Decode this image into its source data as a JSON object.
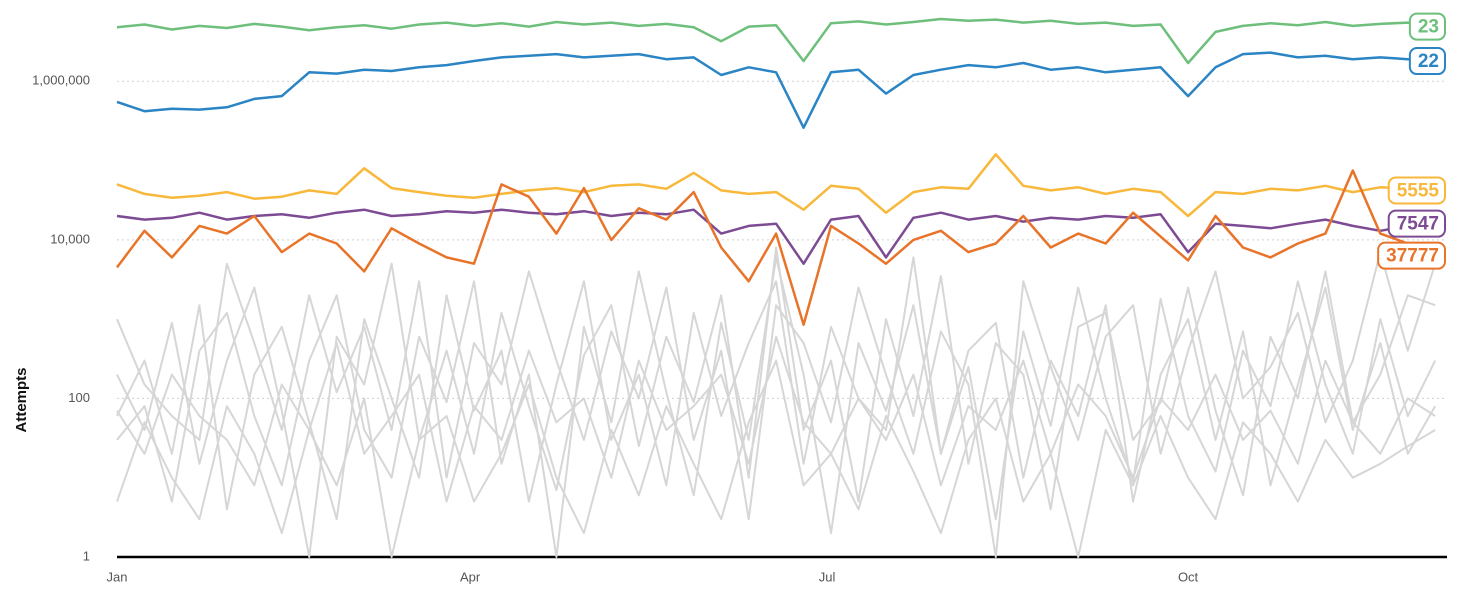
{
  "chart_data": {
    "type": "line",
    "ylabel": "Attempts",
    "yscale": "log",
    "grid": true,
    "x": [
      0,
      7,
      14,
      21,
      28,
      35,
      42,
      49,
      56,
      63,
      70,
      77,
      84,
      91,
      98,
      105,
      112,
      119,
      126,
      133,
      140,
      147,
      154,
      161,
      168,
      175,
      182,
      189,
      196,
      203,
      210,
      217,
      224,
      231,
      238,
      245,
      252,
      259,
      266,
      273,
      280,
      287,
      294,
      301,
      308,
      315,
      322,
      329,
      336
    ],
    "xlim": [
      0,
      339
    ],
    "xticks": [
      {
        "value": 0,
        "label": "Jan"
      },
      {
        "value": 90,
        "label": "Apr"
      },
      {
        "value": 181,
        "label": "Jul"
      },
      {
        "value": 273,
        "label": "Oct"
      }
    ],
    "ylim": [
      1,
      10000000
    ],
    "yticks": [
      1,
      100,
      {
        "value": 10000,
        "label": "10,000"
      },
      {
        "value": 1000000,
        "label": "1,000,000"
      }
    ],
    "series": [
      {
        "color": "#d6d6d6",
        "values": [
          30,
          80,
          5,
          400,
          1200,
          60,
          8,
          300,
          2000,
          40,
          10,
          600,
          90,
          3000,
          15,
          200,
          1,
          800,
          50,
          4000,
          120,
          6,
          900,
          30,
          6000,
          200,
          2,
          500,
          70,
          1500,
          20,
          250,
          3,
          700,
          45,
          2500,
          100,
          9,
          1800,
          60,
          12,
          400,
          80,
          3000,
          150,
          20,
          1000,
          60,
          300
        ]
      },
      {
        "color": "#d6d6d6",
        "values": [
          200,
          40,
          900,
          15,
          300,
          2500,
          70,
          1,
          600,
          150,
          5000,
          30,
          400,
          20,
          1200,
          80,
          7,
          350,
          1500,
          25,
          600,
          90,
          2000,
          10,
          8000,
          40,
          300,
          5,
          1000,
          60,
          3500,
          15,
          500,
          200,
          4,
          800,
          1200,
          30,
          90,
          2500,
          70,
          6,
          600,
          100,
          4000,
          50,
          200,
          2000,
          1500
        ]
      },
      {
        "color": "#d6d6d6",
        "values": [
          60,
          300,
          20,
          1500,
          4,
          200,
          800,
          50,
          3,
          1000,
          100,
          10,
          2000,
          70,
          400,
          5,
          150,
          3000,
          30,
          200,
          8,
          1200,
          60,
          500,
          3000,
          15,
          800,
          100,
          40,
          6000,
          20,
          400,
          900,
          10,
          300,
          60,
          1500,
          5,
          200,
          1000,
          30,
          700,
          8,
          150,
          2500,
          40,
          500,
          20,
          80
        ]
      },
      {
        "color": "#d6d6d6",
        "values": [
          1000,
          150,
          60,
          30,
          5000,
          500,
          40,
          2000,
          120,
          800,
          40,
          3000,
          10,
          500,
          150,
          4000,
          300,
          30,
          700,
          100,
          2500,
          30,
          400,
          3,
          1500,
          500,
          50,
          2500,
          200,
          20,
          700,
          150,
          1,
          3000,
          250,
          30,
          600,
          1500,
          20,
          400,
          4000,
          100,
          250,
          1200,
          50,
          300,
          7000,
          400,
          5000
        ]
      },
      {
        "color": "#d6d6d6",
        "values": [
          70,
          20,
          200,
          60,
          30,
          8,
          150,
          40,
          500,
          20,
          60,
          200,
          5,
          80,
          30,
          400,
          50,
          100,
          10,
          300,
          40,
          80,
          200,
          15,
          600,
          50,
          20,
          100,
          30,
          200,
          8,
          80,
          40,
          300,
          20,
          150,
          60,
          10,
          100,
          40,
          200,
          30,
          70,
          15,
          300,
          50,
          20,
          100,
          60
        ]
      },
      {
        "color": "#d6d6d6",
        "values": [
          5,
          50,
          10,
          3,
          80,
          20,
          2,
          40,
          8,
          100,
          1,
          30,
          60,
          5,
          20,
          150,
          10,
          2,
          40,
          6,
          80,
          15,
          3,
          50,
          300,
          8,
          20,
          4,
          60,
          12,
          2,
          30,
          100,
          5,
          20,
          1,
          40,
          8,
          60,
          10,
          3,
          50,
          20,
          5,
          30,
          10,
          15,
          25,
          40
        ]
      },
      {
        "name": "23",
        "color": "#6dbf7b",
        "values": [
          4800000,
          5200000,
          4500000,
          5000000,
          4700000,
          5300000,
          4900000,
          4400000,
          4800000,
          5100000,
          4600000,
          5200000,
          5500000,
          5000000,
          5400000,
          4900000,
          5600000,
          5200000,
          5500000,
          5000000,
          5300000,
          4800000,
          3200000,
          4900000,
          5100000,
          1800000,
          5400000,
          5700000,
          5200000,
          5600000,
          6100000,
          5800000,
          6000000,
          5500000,
          5800000,
          5300000,
          5500000,
          5000000,
          5200000,
          1700000,
          4200000,
          5000000,
          5400000,
          5100000,
          5600000,
          5000000,
          5300000,
          5500000,
          4900000
        ]
      },
      {
        "name": "22",
        "color": "#2b84c4",
        "values": [
          550000,
          420000,
          450000,
          440000,
          470000,
          600000,
          650000,
          1300000,
          1250000,
          1400000,
          1350000,
          1500000,
          1600000,
          1800000,
          2000000,
          2100000,
          2200000,
          2000000,
          2100000,
          2200000,
          1900000,
          2000000,
          1200000,
          1500000,
          1300000,
          260000,
          1300000,
          1400000,
          700000,
          1200000,
          1400000,
          1600000,
          1500000,
          1700000,
          1400000,
          1500000,
          1300000,
          1400000,
          1500000,
          650000,
          1500000,
          2200000,
          2300000,
          2000000,
          2100000,
          1900000,
          2000000,
          1900000,
          1800000
        ]
      },
      {
        "name": "5555",
        "color": "#f7b83c",
        "values": [
          50000,
          38000,
          34000,
          36000,
          40000,
          33000,
          35000,
          42000,
          38000,
          80000,
          45000,
          40000,
          36000,
          34000,
          38000,
          42000,
          45000,
          40000,
          48000,
          50000,
          44000,
          70000,
          42000,
          38000,
          40000,
          24000,
          48000,
          44000,
          22000,
          40000,
          46000,
          44000,
          120000,
          48000,
          42000,
          46000,
          38000,
          44000,
          40000,
          20000,
          40000,
          38000,
          44000,
          42000,
          48000,
          40000,
          46000,
          44000,
          42000
        ]
      },
      {
        "name": "7547",
        "color": "#7d4b93",
        "values": [
          20000,
          18000,
          19000,
          22000,
          18000,
          20000,
          21000,
          19000,
          22000,
          24000,
          20000,
          21000,
          23000,
          22000,
          24000,
          22000,
          21000,
          23000,
          20000,
          22000,
          21000,
          24000,
          12000,
          15000,
          16000,
          5000,
          18000,
          20000,
          6000,
          19000,
          22000,
          18000,
          20000,
          17000,
          19000,
          18000,
          20000,
          19000,
          21000,
          7000,
          16000,
          15000,
          14000,
          16000,
          18000,
          15000,
          13000,
          15000,
          16000
        ]
      },
      {
        "name": "37777",
        "color": "#e8742a",
        "values": [
          4500,
          13000,
          6000,
          15000,
          12000,
          20000,
          7000,
          12000,
          9000,
          4000,
          14000,
          9000,
          6000,
          5000,
          50000,
          35000,
          12000,
          45000,
          10000,
          25000,
          18000,
          40000,
          8000,
          3000,
          12000,
          850,
          15000,
          9000,
          5000,
          10000,
          13000,
          7000,
          9000,
          20000,
          8000,
          12000,
          9000,
          22000,
          11000,
          5500,
          20000,
          8000,
          6000,
          9000,
          12000,
          75000,
          12000,
          9000,
          7000
        ]
      }
    ]
  }
}
